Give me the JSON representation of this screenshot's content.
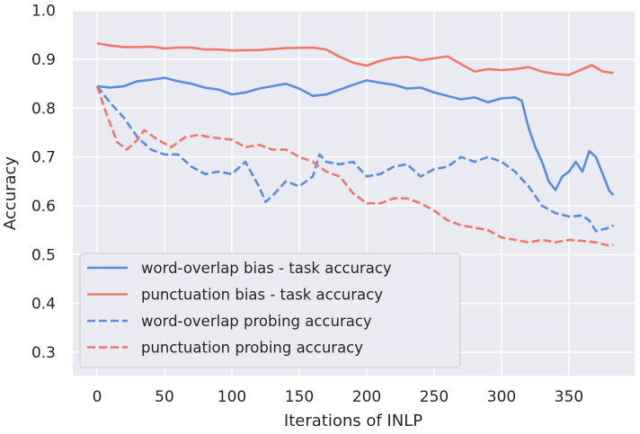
{
  "chart_data": {
    "type": "line",
    "title": "",
    "xlabel": "Iterations of INLP",
    "ylabel": "Accuracy",
    "xlim": [
      -18,
      398
    ],
    "ylim": [
      0.252,
      1.0
    ],
    "xticks": [
      0,
      50,
      100,
      150,
      200,
      250,
      300,
      350
    ],
    "yticks": [
      0.3,
      0.4,
      0.5,
      0.6,
      0.7,
      0.8,
      0.9,
      1.0
    ],
    "ytick_labels": [
      "0.3",
      "0.4",
      "0.5",
      "0.6",
      "0.7",
      "0.8",
      "0.9",
      "1.0"
    ],
    "grid": true,
    "legend_position": "lower left",
    "colors": {
      "background": "#eaeaf2",
      "grid": "#ffffff",
      "blue": "#5b8ddf",
      "red": "#f0776a"
    },
    "series": [
      {
        "name": "word-overlap bias - task accuracy",
        "color": "#5b8ddf",
        "style": "solid",
        "x": [
          0,
          10,
          20,
          30,
          40,
          50,
          60,
          70,
          80,
          90,
          100,
          110,
          120,
          130,
          140,
          150,
          160,
          170,
          180,
          190,
          200,
          210,
          220,
          230,
          240,
          250,
          260,
          270,
          280,
          290,
          300,
          310,
          315,
          320,
          325,
          330,
          335,
          340,
          345,
          350,
          355,
          360,
          365,
          370,
          375,
          380,
          383
        ],
        "y": [
          0.845,
          0.842,
          0.845,
          0.855,
          0.858,
          0.862,
          0.855,
          0.85,
          0.842,
          0.838,
          0.828,
          0.832,
          0.84,
          0.845,
          0.85,
          0.84,
          0.825,
          0.828,
          0.838,
          0.848,
          0.857,
          0.852,
          0.848,
          0.84,
          0.842,
          0.832,
          0.825,
          0.818,
          0.822,
          0.812,
          0.82,
          0.822,
          0.815,
          0.76,
          0.72,
          0.69,
          0.65,
          0.632,
          0.66,
          0.67,
          0.69,
          0.67,
          0.712,
          0.7,
          0.665,
          0.63,
          0.622
        ]
      },
      {
        "name": "punctuation bias - task accuracy",
        "color": "#f0776a",
        "style": "solid",
        "x": [
          0,
          10,
          20,
          30,
          40,
          50,
          60,
          70,
          80,
          90,
          100,
          120,
          140,
          160,
          170,
          180,
          190,
          200,
          210,
          220,
          230,
          240,
          250,
          260,
          270,
          280,
          290,
          300,
          310,
          320,
          330,
          340,
          350,
          360,
          367,
          375,
          383
        ],
        "y": [
          0.933,
          0.928,
          0.925,
          0.925,
          0.926,
          0.922,
          0.924,
          0.924,
          0.92,
          0.92,
          0.918,
          0.919,
          0.923,
          0.924,
          0.92,
          0.905,
          0.893,
          0.887,
          0.897,
          0.903,
          0.905,
          0.898,
          0.902,
          0.906,
          0.89,
          0.875,
          0.88,
          0.878,
          0.88,
          0.884,
          0.875,
          0.87,
          0.868,
          0.88,
          0.888,
          0.875,
          0.872
        ]
      },
      {
        "name": "word-overlap probing accuracy",
        "color": "#5b8ddf",
        "style": "dashed",
        "x": [
          0,
          10,
          20,
          30,
          40,
          50,
          60,
          70,
          80,
          90,
          100,
          110,
          120,
          125,
          130,
          140,
          150,
          160,
          165,
          170,
          180,
          190,
          200,
          210,
          220,
          230,
          240,
          250,
          260,
          270,
          280,
          290,
          300,
          310,
          320,
          330,
          340,
          350,
          360,
          365,
          370,
          380,
          383
        ],
        "y": [
          0.845,
          0.81,
          0.78,
          0.74,
          0.715,
          0.705,
          0.705,
          0.68,
          0.665,
          0.67,
          0.665,
          0.69,
          0.64,
          0.608,
          0.62,
          0.65,
          0.64,
          0.66,
          0.705,
          0.69,
          0.685,
          0.69,
          0.66,
          0.665,
          0.68,
          0.685,
          0.66,
          0.675,
          0.68,
          0.7,
          0.69,
          0.7,
          0.69,
          0.67,
          0.64,
          0.6,
          0.585,
          0.578,
          0.58,
          0.57,
          0.548,
          0.555,
          0.56
        ]
      },
      {
        "name": "punctuation probing accuracy",
        "color": "#f0776a",
        "style": "dashed",
        "x": [
          0,
          8,
          15,
          22,
          30,
          35,
          45,
          55,
          65,
          75,
          85,
          100,
          110,
          120,
          130,
          140,
          150,
          160,
          170,
          180,
          190,
          200,
          210,
          220,
          230,
          240,
          250,
          260,
          270,
          280,
          290,
          300,
          310,
          320,
          330,
          340,
          350,
          360,
          370,
          380,
          383
        ],
        "y": [
          0.845,
          0.78,
          0.73,
          0.715,
          0.735,
          0.755,
          0.735,
          0.72,
          0.74,
          0.745,
          0.74,
          0.735,
          0.72,
          0.725,
          0.715,
          0.715,
          0.7,
          0.69,
          0.67,
          0.66,
          0.625,
          0.605,
          0.605,
          0.615,
          0.615,
          0.605,
          0.59,
          0.57,
          0.56,
          0.555,
          0.55,
          0.535,
          0.53,
          0.525,
          0.53,
          0.525,
          0.53,
          0.528,
          0.525,
          0.518,
          0.52
        ]
      }
    ]
  }
}
